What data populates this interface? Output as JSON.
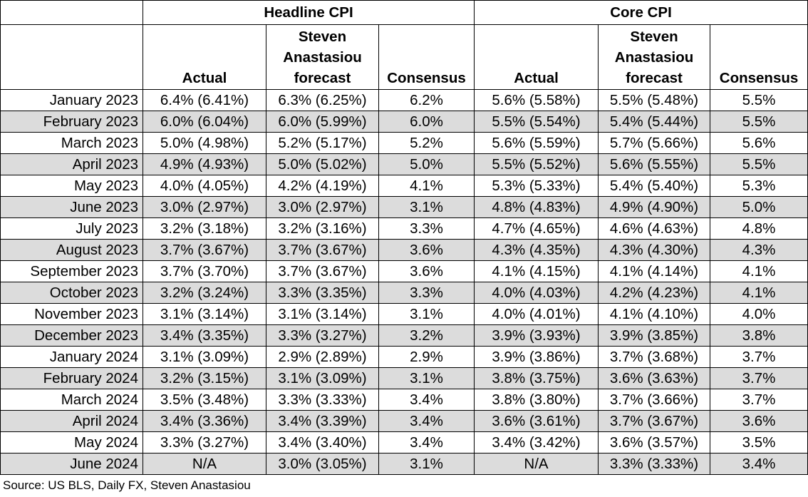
{
  "chart_data": {
    "type": "table",
    "groups": [
      "Headline CPI",
      "Core CPI"
    ],
    "subheaders": [
      "Actual",
      "Steven Anastasiou forecast",
      "Consensus",
      "Actual",
      "Steven Anastasiou forecast",
      "Consensus"
    ],
    "rows": [
      {
        "month": "January 2023",
        "cells": [
          "6.4% (6.41%)",
          "6.3% (6.25%)",
          "6.2%",
          "5.6% (5.58%)",
          "5.5% (5.48%)",
          "5.5%"
        ]
      },
      {
        "month": "February 2023",
        "cells": [
          "6.0% (6.04%)",
          "6.0% (5.99%)",
          "6.0%",
          "5.5% (5.54%)",
          "5.4% (5.44%)",
          "5.5%"
        ]
      },
      {
        "month": "March 2023",
        "cells": [
          "5.0% (4.98%)",
          "5.2% (5.17%)",
          "5.2%",
          "5.6% (5.59%)",
          "5.7% (5.66%)",
          "5.6%"
        ]
      },
      {
        "month": "April 2023",
        "cells": [
          "4.9% (4.93%)",
          "5.0% (5.02%)",
          "5.0%",
          "5.5% (5.52%)",
          "5.6% (5.55%)",
          "5.5%"
        ]
      },
      {
        "month": "May 2023",
        "cells": [
          "4.0% (4.05%)",
          "4.2% (4.19%)",
          "4.1%",
          "5.3% (5.33%)",
          "5.4% (5.40%)",
          "5.3%"
        ]
      },
      {
        "month": "June 2023",
        "cells": [
          "3.0% (2.97%)",
          "3.0% (2.97%)",
          "3.1%",
          "4.8% (4.83%)",
          "4.9% (4.90%)",
          "5.0%"
        ]
      },
      {
        "month": "July 2023",
        "cells": [
          "3.2% (3.18%)",
          "3.2% (3.16%)",
          "3.3%",
          "4.7% (4.65%)",
          "4.6% (4.63%)",
          "4.8%"
        ]
      },
      {
        "month": "August 2023",
        "cells": [
          "3.7% (3.67%)",
          "3.7% (3.67%)",
          "3.6%",
          "4.3% (4.35%)",
          "4.3% (4.30%)",
          "4.3%"
        ]
      },
      {
        "month": "September 2023",
        "cells": [
          "3.7% (3.70%)",
          "3.7% (3.67%)",
          "3.6%",
          "4.1% (4.15%)",
          "4.1% (4.14%)",
          "4.1%"
        ]
      },
      {
        "month": "October 2023",
        "cells": [
          "3.2% (3.24%)",
          "3.3% (3.35%)",
          "3.3%",
          "4.0% (4.03%)",
          "4.2% (4.23%)",
          "4.1%"
        ]
      },
      {
        "month": "November 2023",
        "cells": [
          "3.1% (3.14%)",
          "3.1% (3.14%)",
          "3.1%",
          "4.0% (4.01%)",
          "4.1% (4.10%)",
          "4.0%"
        ]
      },
      {
        "month": "December 2023",
        "cells": [
          "3.4% (3.35%)",
          "3.3% (3.27%)",
          "3.2%",
          "3.9% (3.93%)",
          "3.9% (3.85%)",
          "3.8%"
        ]
      },
      {
        "month": "January 2024",
        "cells": [
          "3.1% (3.09%)",
          "2.9% (2.89%)",
          "2.9%",
          "3.9% (3.86%)",
          "3.7% (3.68%)",
          "3.7%"
        ]
      },
      {
        "month": "February 2024",
        "cells": [
          "3.2% (3.15%)",
          "3.1% (3.09%)",
          "3.1%",
          "3.8% (3.75%)",
          "3.6% (3.63%)",
          "3.7%"
        ]
      },
      {
        "month": "March 2024",
        "cells": [
          "3.5% (3.48%)",
          "3.3% (3.33%)",
          "3.4%",
          "3.8% (3.80%)",
          "3.7% (3.66%)",
          "3.7%"
        ]
      },
      {
        "month": "April 2024",
        "cells": [
          "3.4% (3.36%)",
          "3.4% (3.39%)",
          "3.4%",
          "3.6% (3.61%)",
          "3.7% (3.67%)",
          "3.6%"
        ]
      },
      {
        "month": "May 2024",
        "cells": [
          "3.3% (3.27%)",
          "3.4% (3.40%)",
          "3.4%",
          "3.4% (3.42%)",
          "3.6% (3.57%)",
          "3.5%"
        ]
      },
      {
        "month": "June 2024",
        "cells": [
          "N/A",
          "3.0% (3.05%)",
          "3.1%",
          "N/A",
          "3.3% (3.33%)",
          "3.4%"
        ]
      }
    ],
    "source": "Source: US BLS, Daily FX, Steven Anastasiou",
    "shaded_row_color": "#dcdcdc"
  }
}
